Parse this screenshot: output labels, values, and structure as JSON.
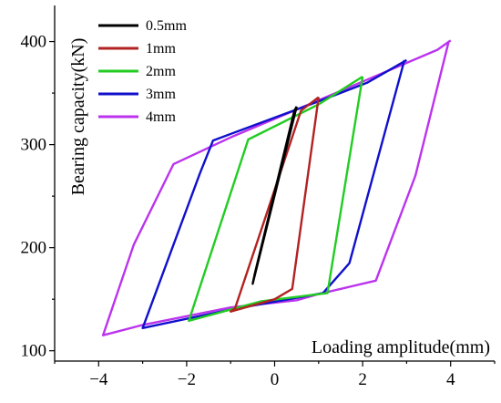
{
  "chart_data": {
    "type": "line",
    "xlabel": "Loading amplitude(mm)",
    "ylabel": "Bearing capacity(kN)",
    "xlim": [
      -5,
      5
    ],
    "ylim": [
      90,
      435
    ],
    "xticks": [
      "−4",
      "−2",
      "0",
      "2",
      "4"
    ],
    "xtick_values": [
      -4,
      -2,
      0,
      2,
      4
    ],
    "yticks": [
      "100",
      "200",
      "300",
      "400"
    ],
    "ytick_values": [
      100,
      200,
      300,
      400
    ],
    "legend_position": "top-left",
    "series": [
      {
        "name": "0.5mm",
        "color": "#000000",
        "points": [
          [
            0.5,
            337
          ],
          [
            -0.5,
            165
          ],
          [
            -0.45,
            175
          ],
          [
            0.45,
            333
          ],
          [
            0.5,
            337
          ]
        ]
      },
      {
        "name": "1mm",
        "color": "#b22222",
        "points": [
          [
            1.0,
            346
          ],
          [
            0.6,
            333
          ],
          [
            -0.9,
            141
          ],
          [
            -1.0,
            138
          ],
          [
            0.0,
            150
          ],
          [
            0.4,
            160
          ],
          [
            1.0,
            346
          ]
        ]
      },
      {
        "name": "2mm",
        "color": "#22cc22",
        "points": [
          [
            2.0,
            366
          ],
          [
            1.0,
            339
          ],
          [
            -0.6,
            305
          ],
          [
            -1.95,
            129
          ],
          [
            -0.3,
            148
          ],
          [
            1.2,
            156
          ],
          [
            2.0,
            366
          ]
        ]
      },
      {
        "name": "3mm",
        "color": "#1010cc",
        "points": [
          [
            3.0,
            382
          ],
          [
            2.1,
            360
          ],
          [
            1.0,
            342
          ],
          [
            -1.4,
            304
          ],
          [
            -1.7,
            272
          ],
          [
            -3.0,
            122
          ],
          [
            -1.0,
            140
          ],
          [
            1.1,
            156
          ],
          [
            1.7,
            185
          ],
          [
            2.95,
            382
          ]
        ]
      },
      {
        "name": "4mm",
        "color": "#bb33ee",
        "points": [
          [
            4.0,
            401
          ],
          [
            3.7,
            392
          ],
          [
            1.0,
            343
          ],
          [
            -1.0,
            307
          ],
          [
            -2.3,
            281
          ],
          [
            -3.2,
            203
          ],
          [
            -3.9,
            115
          ],
          [
            -3.0,
            125
          ],
          [
            -1.0,
            142
          ],
          [
            0.5,
            149
          ],
          [
            1.0,
            155
          ],
          [
            2.3,
            168
          ],
          [
            3.2,
            270
          ],
          [
            3.95,
            399
          ]
        ]
      }
    ]
  }
}
